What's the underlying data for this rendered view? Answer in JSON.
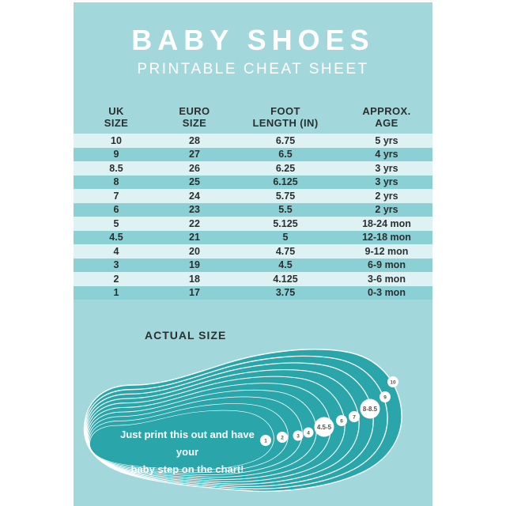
{
  "header": {
    "title": "BABY SHOES",
    "subtitle": "PRINTABLE CHEAT SHEET"
  },
  "table": {
    "columns": [
      {
        "line1": "UK",
        "line2": "SIZE"
      },
      {
        "line1": "EURO",
        "line2": "SIZE"
      },
      {
        "line1": "FOOT",
        "line2": "LENGTH (IN)"
      },
      {
        "line1": "APPROX.",
        "line2": "AGE"
      }
    ],
    "rows": [
      {
        "uk": "10",
        "euro": "28",
        "foot": "6.75",
        "age": "5 yrs"
      },
      {
        "uk": "9",
        "euro": "27",
        "foot": "6.5",
        "age": "4 yrs"
      },
      {
        "uk": "8.5",
        "euro": "26",
        "foot": "6.25",
        "age": "3 yrs"
      },
      {
        "uk": "8",
        "euro": "25",
        "foot": "6.125",
        "age": "3 yrs"
      },
      {
        "uk": "7",
        "euro": "24",
        "foot": "5.75",
        "age": "2 yrs"
      },
      {
        "uk": "6",
        "euro": "23",
        "foot": "5.5",
        "age": "2 yrs"
      },
      {
        "uk": "5",
        "euro": "22",
        "foot": "5.125",
        "age": "18-24 mon"
      },
      {
        "uk": "4.5",
        "euro": "21",
        "foot": "5",
        "age": "12-18 mon"
      },
      {
        "uk": "4",
        "euro": "20",
        "foot": "4.75",
        "age": "9-12 mon"
      },
      {
        "uk": "3",
        "euro": "19",
        "foot": "4.5",
        "age": "6-9 mon"
      },
      {
        "uk": "2",
        "euro": "18",
        "foot": "4.125",
        "age": "3-6 mon"
      },
      {
        "uk": "1",
        "euro": "17",
        "foot": "3.75",
        "age": "0-3 mon"
      }
    ]
  },
  "actual_size": {
    "heading": "ACTUAL SIZE",
    "note_line1": "Just print this out and have your",
    "note_line2": "baby step on the chart!",
    "size_markers": [
      "1",
      "2",
      "3",
      "4",
      "4.5-5",
      "6",
      "7",
      "8-8.5",
      "9",
      "10"
    ]
  },
  "colors": {
    "card_bg": "#a2d8db",
    "row_light": "#def2f3",
    "row_dark": "#8bd0d5",
    "foot_fill": "#2aa6ab",
    "text_dark": "#2b2f2f",
    "marker_text": "#5c5144",
    "text_white": "#ffffff"
  }
}
